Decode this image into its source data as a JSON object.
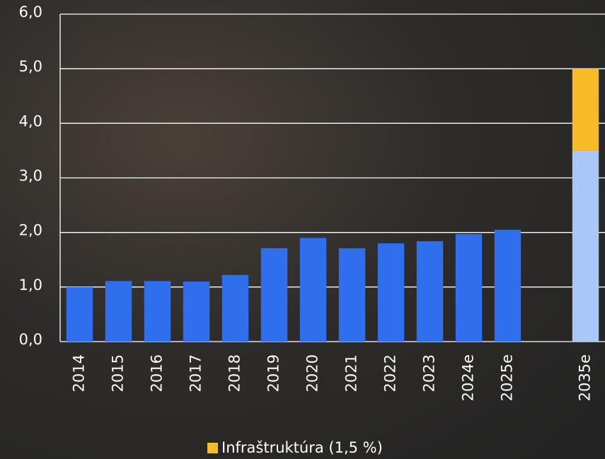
{
  "chart_data": {
    "type": "bar",
    "categories": [
      "2014",
      "2015",
      "2016",
      "2017",
      "2018",
      "2019",
      "2020",
      "2021",
      "2022",
      "2023",
      "2024e",
      "2025e",
      null,
      "2035e"
    ],
    "series": [
      {
        "color": "#2f6fee",
        "values": [
          1.0,
          1.11,
          1.11,
          1.1,
          1.22,
          1.71,
          1.9,
          1.71,
          1.8,
          1.84,
          1.97,
          2.05,
          null,
          null
        ]
      },
      {
        "color": "#a9c8f7",
        "values": [
          null,
          null,
          null,
          null,
          null,
          null,
          null,
          null,
          null,
          null,
          null,
          null,
          null,
          3.5
        ]
      },
      {
        "name": "Infraštruktúra (1,5 %)",
        "color": "#f8bb25",
        "values": [
          null,
          null,
          null,
          null,
          null,
          null,
          null,
          null,
          null,
          null,
          null,
          null,
          null,
          1.5
        ]
      }
    ],
    "stacked": true,
    "ylim": [
      0,
      6
    ],
    "yticks": [
      {
        "value": 0,
        "label": "0,0"
      },
      {
        "value": 1,
        "label": "1,0"
      },
      {
        "value": 2,
        "label": "2,0"
      },
      {
        "value": 3,
        "label": "3,0"
      },
      {
        "value": 4,
        "label": "4,0"
      },
      {
        "value": 5,
        "label": "5,0"
      },
      {
        "value": 6,
        "label": "6,0"
      }
    ],
    "grid": true
  }
}
